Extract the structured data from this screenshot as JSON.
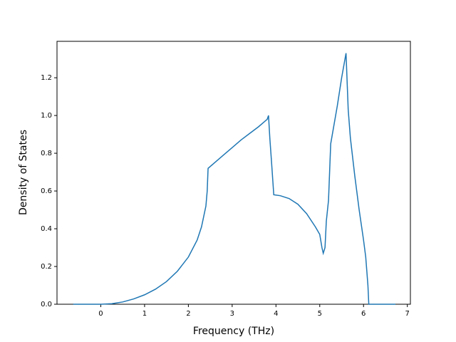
{
  "chart_data": {
    "type": "line",
    "xlabel": "Frequency (THz)",
    "ylabel": "Density of States",
    "x": [
      -0.63,
      0,
      0.25,
      0.5,
      0.75,
      1.0,
      1.25,
      1.5,
      1.75,
      2.0,
      2.2,
      2.3,
      2.4,
      2.43,
      2.45,
      2.6,
      2.8,
      3.0,
      3.2,
      3.4,
      3.6,
      3.75,
      3.8,
      3.83,
      3.86,
      3.9,
      3.95,
      4.1,
      4.3,
      4.5,
      4.7,
      4.9,
      5.0,
      5.05,
      5.08,
      5.12,
      5.15,
      5.2,
      5.25,
      5.4,
      5.5,
      5.6,
      5.65,
      5.7,
      5.8,
      5.9,
      6.0,
      6.05,
      6.1,
      6.12,
      6.73
    ],
    "series": [
      {
        "color": "#1f77b4",
        "values": [
          0,
          0,
          0.003,
          0.012,
          0.028,
          0.05,
          0.08,
          0.12,
          0.175,
          0.25,
          0.34,
          0.41,
          0.52,
          0.6,
          0.72,
          0.75,
          0.79,
          0.83,
          0.87,
          0.905,
          0.94,
          0.97,
          0.98,
          1.0,
          0.88,
          0.75,
          0.58,
          0.575,
          0.56,
          0.53,
          0.48,
          0.41,
          0.37,
          0.3,
          0.27,
          0.3,
          0.44,
          0.55,
          0.85,
          1.05,
          1.2,
          1.33,
          1.03,
          0.88,
          0.68,
          0.5,
          0.34,
          0.25,
          0.1,
          0,
          0
        ]
      }
    ],
    "xlim": [
      -1.0,
      7.07
    ],
    "ylim": [
      0,
      1.393
    ],
    "xticks": [
      0,
      1,
      2,
      3,
      4,
      5,
      6,
      7
    ],
    "yticks": [
      {
        "value": 0,
        "label": "0.0"
      },
      0.2,
      0.4,
      0.6,
      0.8,
      {
        "value": 1,
        "label": "1.0"
      },
      1.2
    ]
  }
}
